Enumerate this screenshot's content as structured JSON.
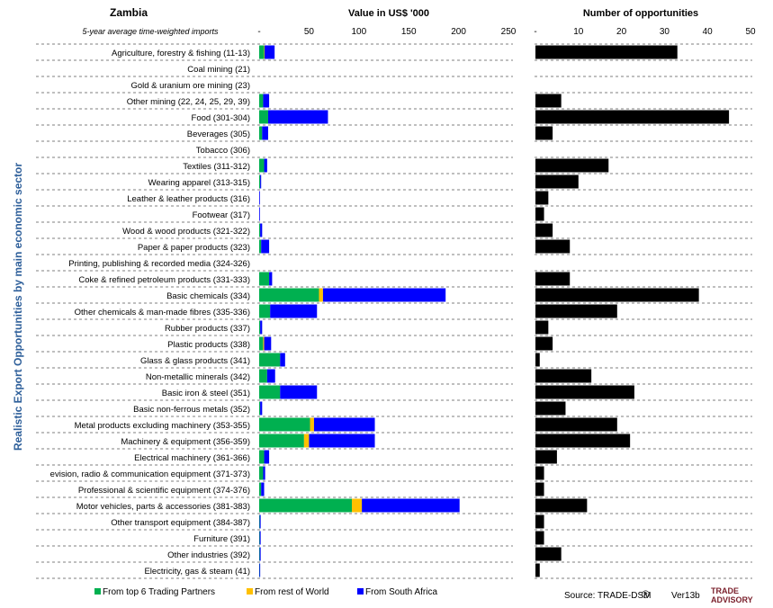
{
  "header": {
    "country": "Zambia",
    "subtitle": "5-year average time-weighted imports",
    "value_title": "Value in US$ '000",
    "count_title": "Number of opportunities"
  },
  "y_axis_title": "Realistic Export Opportunities by main economic sector",
  "legend": [
    {
      "name": "From top 6 Trading Partners",
      "color": "#00b050"
    },
    {
      "name": "From rest of World",
      "color": "#ffc000"
    },
    {
      "name": "From South Africa",
      "color": "#0000ff"
    }
  ],
  "footer": {
    "source": "Source: TRADE-DSM",
    "registered": "®",
    "version": "Ver13b",
    "logo_line1": "TRADE",
    "logo_line2": "ADVISORY"
  },
  "chart_data": [
    {
      "type": "bar",
      "orientation": "horizontal",
      "stacked": true,
      "title": "Value in US$ '000",
      "xlim": [
        0,
        250
      ],
      "x_ticks": [
        "-",
        "50",
        "100",
        "150",
        "200",
        "250"
      ],
      "categories": [
        "Agriculture, forestry & fishing (11-13)",
        "Coal mining (21)",
        "Gold & uranium ore mining (23)",
        "Other mining (22, 24, 25, 29, 39)",
        "Food (301-304)",
        "Beverages (305)",
        "Tobacco (306)",
        "Textiles (311-312)",
        "Wearing apparel (313-315)",
        "Leather & leather products (316)",
        "Footwear (317)",
        "Wood & wood products (321-322)",
        "Paper & paper products (323)",
        "Printing, publishing & recorded media (324-326)",
        "Coke & refined petroleum products (331-333)",
        "Basic chemicals (334)",
        "Other chemicals & man-made fibres (335-336)",
        "Rubber products (337)",
        "Plastic products (338)",
        "Glass & glass products (341)",
        "Non-metallic minerals (342)",
        "Basic iron & steel (351)",
        "Basic non-ferrous metals (352)",
        "Metal products excluding machinery (353-355)",
        "Machinery & equipment (356-359)",
        "Electrical machinery (361-366)",
        "evision, radio & communication equipment (371-373)",
        "Professional & scientific equipment (374-376)",
        "Motor vehicles, parts & accessories (381-383)",
        "Other transport equipment (384-387)",
        "Furniture (391)",
        "Other industries (392)",
        "Electricity, gas & steam (41)"
      ],
      "series": [
        {
          "name": "From top 6 Trading Partners",
          "color": "#00b050",
          "values": [
            5,
            0,
            0,
            4,
            9,
            3,
            0,
            5,
            1,
            0,
            0,
            1,
            2,
            0,
            10,
            60,
            11,
            1,
            4,
            21,
            8,
            21,
            1,
            51,
            45,
            5,
            4,
            2,
            93,
            0.5,
            0.5,
            0.5,
            0.3
          ]
        },
        {
          "name": "From rest of World",
          "color": "#ffc000",
          "values": [
            0.5,
            0,
            0,
            0,
            0,
            0,
            0,
            0,
            0,
            0,
            0,
            0,
            0,
            0,
            0,
            4,
            0,
            0,
            1,
            0,
            0,
            0,
            0,
            4,
            5,
            0,
            0,
            0,
            10,
            0,
            0,
            0,
            0
          ]
        },
        {
          "name": "From South Africa",
          "color": "#0000ff",
          "values": [
            10,
            0,
            0,
            6,
            60,
            6,
            0,
            3,
            1,
            0.5,
            0.5,
            2,
            8,
            0,
            3,
            123,
            47,
            2,
            7,
            5,
            8,
            37,
            2,
            61,
            66,
            5,
            2,
            3,
            98,
            1,
            1,
            1,
            0.5
          ]
        }
      ]
    },
    {
      "type": "bar",
      "orientation": "horizontal",
      "title": "Number of opportunities",
      "xlim": [
        0,
        50
      ],
      "x_ticks": [
        "-",
        "10",
        "20",
        "30",
        "40",
        "50"
      ],
      "series": [
        {
          "name": "Number of opportunities",
          "color": "#000000",
          "values": [
            33,
            0,
            0,
            6,
            45,
            4,
            0,
            17,
            10,
            3,
            2,
            4,
            8,
            0,
            8,
            38,
            19,
            3,
            4,
            1,
            13,
            23,
            7,
            19,
            22,
            5,
            2,
            2,
            12,
            2,
            2,
            6,
            1
          ]
        }
      ]
    }
  ]
}
